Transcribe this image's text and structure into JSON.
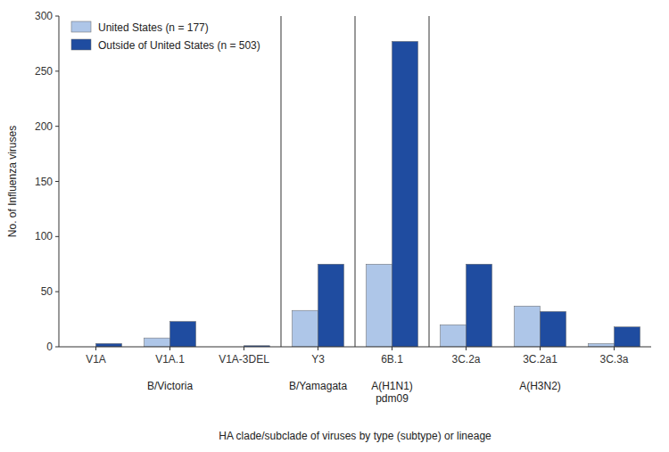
{
  "chart_data": {
    "type": "bar",
    "categories": [
      "V1A",
      "V1A.1",
      "V1A-3DEL",
      "Y3",
      "6B.1",
      "3C.2a",
      "3C.2a1",
      "3C.3a"
    ],
    "series": [
      {
        "name": "United States (n = 177)",
        "color": "#aec6e8",
        "values": [
          0,
          8,
          0,
          33,
          75,
          20,
          37,
          3
        ]
      },
      {
        "name": "Outside of United States (n = 503)",
        "color": "#1f4ca0",
        "values": [
          3,
          23,
          1,
          75,
          277,
          75,
          32,
          18
        ]
      }
    ],
    "y_label": "No. of Influenza viruses",
    "x_label": "HA clade/subclade of viruses by type (subtype) or lineage",
    "groups": [
      {
        "name": "B/Victoria",
        "categories": [
          "V1A",
          "V1A.1",
          "V1A-3DEL"
        ]
      },
      {
        "name": "B/Yamagata",
        "categories": [
          "Y3"
        ]
      },
      {
        "name": "A(H1N1)\npdm09",
        "categories": [
          "6B.1"
        ]
      },
      {
        "name": "A(H3N2)",
        "categories": [
          "3C.2a",
          "3C.2a1",
          "3C.3a"
        ]
      }
    ],
    "ylim": [
      0,
      300
    ],
    "yticks": [
      0,
      50,
      100,
      150,
      200,
      250,
      300
    ],
    "grid": false,
    "legend": "upper left"
  }
}
